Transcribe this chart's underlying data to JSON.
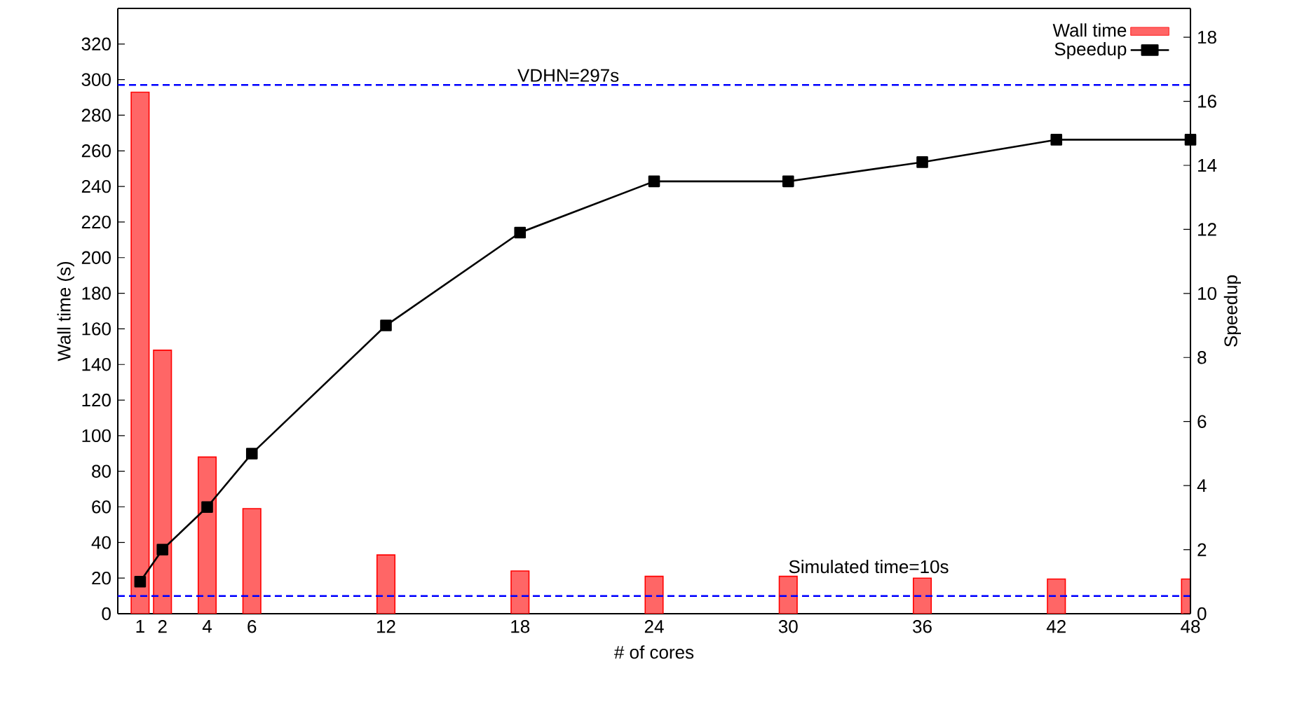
{
  "chart_data": {
    "type": "bar",
    "xlabel": "# of cores",
    "ylabel": "Wall time (s)",
    "y2label": "Speedup",
    "x": [
      1,
      2,
      4,
      6,
      12,
      18,
      24,
      30,
      36,
      42,
      48
    ],
    "series": [
      {
        "name": "Wall time",
        "color": "#ff6666",
        "values": [
          293,
          148,
          88,
          59,
          33,
          24,
          21,
          21,
          20,
          19.5,
          19.5
        ]
      },
      {
        "name": "Speedup",
        "type": "line",
        "axis": "y2",
        "color": "#000000",
        "marker": "square",
        "values": [
          1,
          2,
          3.33,
          5,
          9,
          11.9,
          13.5,
          13.5,
          14.1,
          14.8,
          14.8
        ]
      }
    ],
    "xlim": [
      0,
      48
    ],
    "xticks": [
      1,
      2,
      4,
      6,
      12,
      18,
      24,
      30,
      36,
      42,
      48
    ],
    "ylim": [
      0,
      340
    ],
    "yticks": [
      0,
      20,
      40,
      60,
      80,
      100,
      120,
      140,
      160,
      180,
      200,
      220,
      240,
      260,
      280,
      300,
      320
    ],
    "y2lim": [
      0,
      18.9
    ],
    "y2ticks": [
      0,
      2,
      4,
      6,
      8,
      10,
      12,
      14,
      16,
      18
    ],
    "ref_lines": [
      {
        "axis": "y",
        "value": 297,
        "label": "VDHN=297s",
        "color": "#0000ff",
        "line_style": "dashed"
      },
      {
        "axis": "y",
        "value": 10,
        "label": "Simulated time=10s",
        "color": "#0000ff",
        "line_style": "dashed"
      }
    ],
    "legend": "top right",
    "grid": false
  }
}
